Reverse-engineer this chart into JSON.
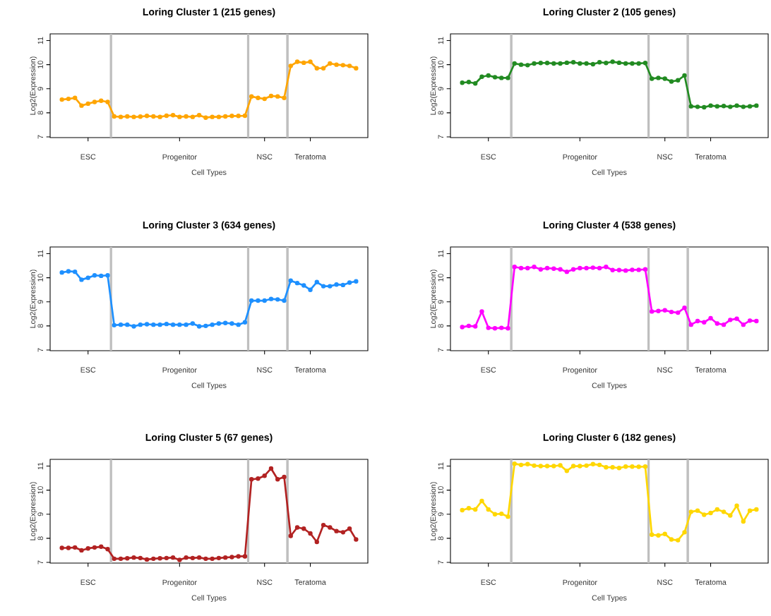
{
  "chart_data": [
    {
      "type": "line",
      "title": "Loring Cluster 1 (215 genes)",
      "xlabel": "Cell Types",
      "ylabel": "Log2(Expression)",
      "color": "#ffa500",
      "marker": "circle",
      "line_style": "solid",
      "categories": [
        null,
        null,
        null,
        null,
        "ESC",
        null,
        null,
        null,
        null,
        null,
        null,
        null,
        null,
        null,
        null,
        null,
        null,
        null,
        "Progenitor",
        null,
        null,
        null,
        null,
        null,
        null,
        null,
        null,
        null,
        null,
        null,
        null,
        "NSC",
        null,
        null,
        null,
        null,
        null,
        null,
        "Teratoma",
        null,
        null,
        null,
        null,
        null,
        null,
        null
      ],
      "values": [
        8.55,
        8.58,
        8.62,
        8.3,
        8.38,
        8.45,
        8.5,
        8.45,
        7.85,
        7.83,
        7.85,
        7.83,
        7.84,
        7.87,
        7.85,
        7.83,
        7.88,
        7.9,
        7.83,
        7.85,
        7.83,
        7.9,
        7.8,
        7.83,
        7.83,
        7.85,
        7.87,
        7.87,
        7.88,
        8.68,
        8.62,
        8.58,
        8.7,
        8.68,
        8.62,
        9.95,
        10.12,
        10.08,
        10.12,
        9.85,
        9.85,
        10.05,
        10.0,
        9.98,
        9.95,
        9.85
      ],
      "ylim": [
        6.97,
        11.28
      ],
      "yticks": [
        7,
        8,
        9,
        10,
        11
      ]
    },
    {
      "type": "line",
      "title": "Loring Cluster 2 (105 genes)",
      "xlabel": "Cell Types",
      "ylabel": "Log2(Expression)",
      "color": "#228b22",
      "marker": "circle",
      "line_style": "solid",
      "categories": [
        null,
        null,
        null,
        null,
        "ESC",
        null,
        null,
        null,
        null,
        null,
        null,
        null,
        null,
        null,
        null,
        null,
        null,
        null,
        "Progenitor",
        null,
        null,
        null,
        null,
        null,
        null,
        null,
        null,
        null,
        null,
        null,
        null,
        "NSC",
        null,
        null,
        null,
        null,
        null,
        null,
        "Teratoma",
        null,
        null,
        null,
        null,
        null,
        null,
        null
      ],
      "values": [
        9.25,
        9.28,
        9.22,
        9.5,
        9.55,
        9.48,
        9.45,
        9.45,
        10.05,
        10.0,
        9.98,
        10.05,
        10.07,
        10.07,
        10.05,
        10.05,
        10.08,
        10.1,
        10.05,
        10.05,
        10.02,
        10.1,
        10.07,
        10.12,
        10.08,
        10.05,
        10.05,
        10.05,
        10.07,
        9.42,
        9.45,
        9.42,
        9.3,
        9.35,
        9.55,
        8.27,
        8.25,
        8.23,
        8.3,
        8.27,
        8.28,
        8.25,
        8.3,
        8.25,
        8.27,
        8.3
      ],
      "ylim": [
        6.97,
        11.28
      ],
      "yticks": [
        7,
        8,
        9,
        10,
        11
      ]
    },
    {
      "type": "line",
      "title": "Loring Cluster 3 (634 genes)",
      "xlabel": "Cell Types",
      "ylabel": "Log2(Expression)",
      "color": "#1e90ff",
      "marker": "circle",
      "line_style": "solid",
      "categories": [
        null,
        null,
        null,
        null,
        "ESC",
        null,
        null,
        null,
        null,
        null,
        null,
        null,
        null,
        null,
        null,
        null,
        null,
        null,
        "Progenitor",
        null,
        null,
        null,
        null,
        null,
        null,
        null,
        null,
        null,
        null,
        null,
        null,
        "NSC",
        null,
        null,
        null,
        null,
        null,
        null,
        "Teratoma",
        null,
        null,
        null,
        null,
        null,
        null,
        null
      ],
      "values": [
        10.22,
        10.27,
        10.25,
        9.92,
        10.0,
        10.1,
        10.08,
        10.1,
        8.03,
        8.05,
        8.05,
        7.98,
        8.05,
        8.07,
        8.05,
        8.05,
        8.08,
        8.05,
        8.05,
        8.05,
        8.1,
        7.98,
        8.0,
        8.05,
        8.1,
        8.12,
        8.1,
        8.05,
        8.15,
        9.05,
        9.05,
        9.05,
        9.12,
        9.1,
        9.05,
        9.88,
        9.78,
        9.68,
        9.5,
        9.82,
        9.65,
        9.65,
        9.72,
        9.7,
        9.8,
        9.85
      ],
      "ylim": [
        6.97,
        11.28
      ],
      "yticks": [
        7,
        8,
        9,
        10,
        11
      ]
    },
    {
      "type": "line",
      "title": "Loring Cluster 4 (538 genes)",
      "xlabel": "Cell Types",
      "ylabel": "Log2(Expression)",
      "color": "#ff00ff",
      "marker": "circle",
      "line_style": "solid",
      "categories": [
        null,
        null,
        null,
        null,
        "ESC",
        null,
        null,
        null,
        null,
        null,
        null,
        null,
        null,
        null,
        null,
        null,
        null,
        null,
        "Progenitor",
        null,
        null,
        null,
        null,
        null,
        null,
        null,
        null,
        null,
        null,
        null,
        null,
        "NSC",
        null,
        null,
        null,
        null,
        null,
        null,
        "Teratoma",
        null,
        null,
        null,
        null,
        null,
        null,
        null
      ],
      "values": [
        7.95,
        8.0,
        7.98,
        8.6,
        7.92,
        7.9,
        7.92,
        7.9,
        10.45,
        10.4,
        10.4,
        10.45,
        10.35,
        10.4,
        10.38,
        10.35,
        10.25,
        10.35,
        10.4,
        10.4,
        10.42,
        10.4,
        10.45,
        10.32,
        10.32,
        10.3,
        10.33,
        10.33,
        10.35,
        8.6,
        8.62,
        8.65,
        8.58,
        8.55,
        8.75,
        8.05,
        8.2,
        8.15,
        8.32,
        8.1,
        8.05,
        8.25,
        8.3,
        8.05,
        8.22,
        8.2
      ],
      "ylim": [
        6.97,
        11.28
      ],
      "yticks": [
        7,
        8,
        9,
        10,
        11
      ]
    },
    {
      "type": "line",
      "title": "Loring Cluster 5 (67 genes)",
      "xlabel": "Cell Types",
      "ylabel": "Log2(Expression)",
      "color": "#b22222",
      "marker": "circle",
      "line_style": "solid",
      "categories": [
        null,
        null,
        null,
        null,
        "ESC",
        null,
        null,
        null,
        null,
        null,
        null,
        null,
        null,
        null,
        null,
        null,
        null,
        null,
        "Progenitor",
        null,
        null,
        null,
        null,
        null,
        null,
        null,
        null,
        null,
        null,
        null,
        null,
        "NSC",
        null,
        null,
        null,
        null,
        null,
        null,
        "Teratoma",
        null,
        null,
        null,
        null,
        null,
        null,
        null
      ],
      "values": [
        7.6,
        7.6,
        7.62,
        7.5,
        7.58,
        7.62,
        7.65,
        7.55,
        7.15,
        7.15,
        7.17,
        7.2,
        7.18,
        7.12,
        7.15,
        7.17,
        7.18,
        7.2,
        7.1,
        7.2,
        7.18,
        7.2,
        7.15,
        7.15,
        7.18,
        7.2,
        7.22,
        7.25,
        7.25,
        10.45,
        10.48,
        10.6,
        10.9,
        10.45,
        10.55,
        8.1,
        8.45,
        8.4,
        8.2,
        7.85,
        8.55,
        8.45,
        8.3,
        8.25,
        8.4,
        7.95
      ],
      "ylim": [
        6.97,
        11.28
      ],
      "yticks": [
        7,
        8,
        9,
        10,
        11
      ]
    },
    {
      "type": "line",
      "title": "Loring Cluster 6 (182 genes)",
      "xlabel": "Cell Types",
      "ylabel": "Log2(Expression)",
      "color": "#ffd700",
      "marker": "circle",
      "line_style": "solid",
      "categories": [
        null,
        null,
        null,
        null,
        "ESC",
        null,
        null,
        null,
        null,
        null,
        null,
        null,
        null,
        null,
        null,
        null,
        null,
        null,
        "Progenitor",
        null,
        null,
        null,
        null,
        null,
        null,
        null,
        null,
        null,
        null,
        null,
        null,
        "NSC",
        null,
        null,
        null,
        null,
        null,
        null,
        "Teratoma",
        null,
        null,
        null,
        null,
        null,
        null,
        null
      ],
      "values": [
        9.17,
        9.25,
        9.2,
        9.55,
        9.2,
        9.0,
        9.02,
        8.9,
        11.1,
        11.05,
        11.08,
        11.02,
        11.0,
        11.0,
        11.0,
        11.03,
        10.8,
        11.0,
        11.0,
        11.02,
        11.08,
        11.05,
        10.95,
        10.95,
        10.92,
        10.98,
        10.98,
        10.97,
        10.98,
        8.15,
        8.12,
        8.18,
        7.95,
        7.92,
        8.25,
        9.1,
        9.15,
        8.98,
        9.05,
        9.2,
        9.1,
        8.95,
        9.35,
        8.7,
        9.15,
        9.2
      ],
      "ylim": [
        6.97,
        11.28
      ],
      "yticks": [
        7,
        8,
        9,
        10,
        11
      ]
    }
  ]
}
